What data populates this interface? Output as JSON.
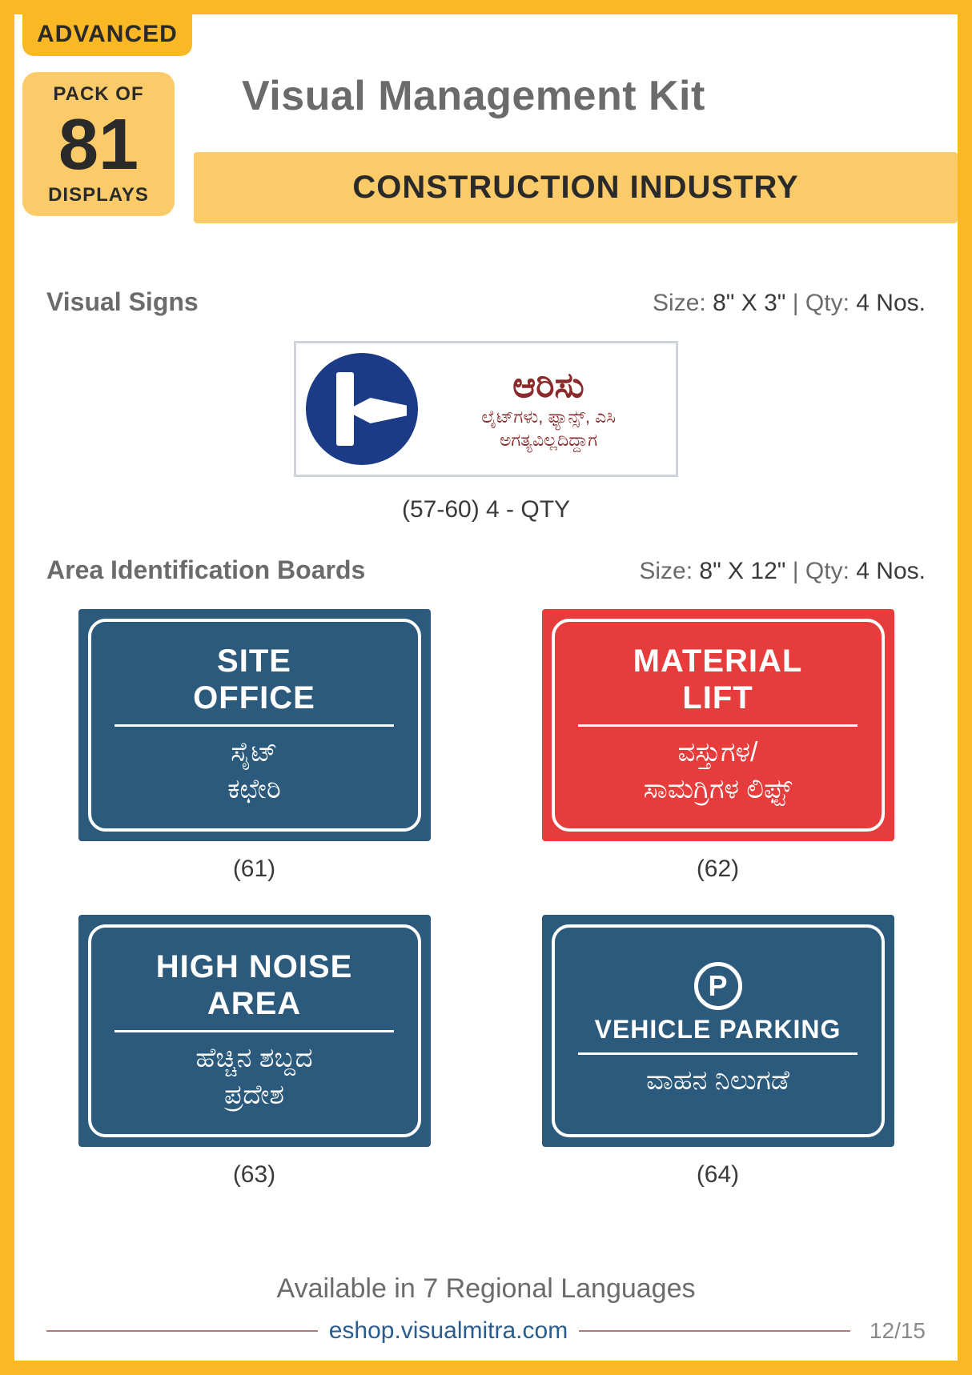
{
  "header": {
    "advanced": "ADVANCED",
    "pack_of": "PACK OF",
    "pack_count": "81",
    "displays": "DISPLAYS",
    "title": "Visual Management Kit",
    "banner": "CONSTRUCTION INDUSTRY"
  },
  "colors": {
    "frame": "#fbb825",
    "badge_bg": "#fbb825",
    "pack_bg": "#fbcb6a",
    "banner_bg": "#fbcb6a",
    "text_dark": "#2a2a2a",
    "text_gray": "#6b6b6b",
    "sign_border": "#cfd4da",
    "sign_icon_bg": "#1b3b87",
    "sign_text": "#8b2a2a",
    "board_blue": "#2b5a7d",
    "board_red": "#e73c3c",
    "url": "#2a5d8f",
    "hr": "#b07a7a"
  },
  "section1": {
    "title": "Visual Signs",
    "size_label": "Size:",
    "size_value": "8\" X 3\"",
    "qty_label": "Qty:",
    "qty_value": "4 Nos.",
    "sign": {
      "line1": "ಆರಿಸು",
      "line2": "ಲೈಟ್‌ಗಳು, ಫ್ಯಾನ್ಸ್, ಎಸಿ",
      "line3": "ಅಗತ್ಯವಿಲ್ಲದಿದ್ದಾಗ"
    },
    "caption": "(57-60) 4 - QTY"
  },
  "section2": {
    "title": "Area Identification Boards",
    "size_label": "Size:",
    "size_value": "8\" X 12\"",
    "qty_label": "Qty:",
    "qty_value": "4 Nos.",
    "boards": [
      {
        "num": "(61)",
        "bg": "#2b5a7d",
        "en": "SITE\nOFFICE",
        "local": "ಸೈಟ್\nಕಛೇರಿ",
        "icon": ""
      },
      {
        "num": "(62)",
        "bg": "#e73c3c",
        "en": "MATERIAL\nLIFT",
        "local": "ವಸ್ತುಗಳ/\nಸಾಮಗ್ರಿಗಳ ಲಿಫ್ಟ್",
        "icon": ""
      },
      {
        "num": "(63)",
        "bg": "#2b5a7d",
        "en": "HIGH NOISE\nAREA",
        "local": "ಹೆಚ್ಚಿನ ಶಬ್ದದ\nಪ್ರದೇಶ",
        "icon": ""
      },
      {
        "num": "(64)",
        "bg": "#2b5a7d",
        "en": "VEHICLE PARKING",
        "local": "ವಾಹನ ನಿಲುಗಡೆ",
        "icon": "P"
      }
    ]
  },
  "footer": {
    "available": "Available in 7 Regional Languages",
    "url": "eshop.visualmitra.com",
    "page": "12/15"
  }
}
